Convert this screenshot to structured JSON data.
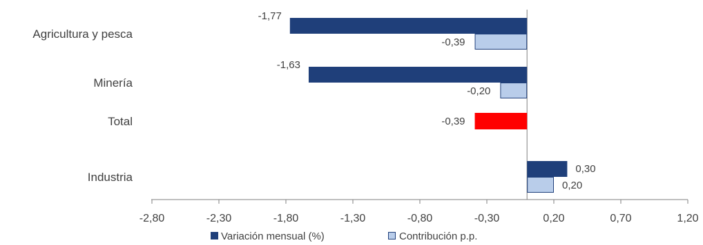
{
  "chart_data": {
    "type": "bar",
    "orientation": "horizontal",
    "categories": [
      "Agricultura y pesca",
      "Minería",
      "Total",
      "Industria"
    ],
    "series": [
      {
        "name": "Variación mensual (%)",
        "color": "#1f3f7a",
        "values": [
          -1.77,
          -1.63,
          null,
          0.3
        ],
        "labels": [
          "-1,77",
          "-1,63",
          "",
          "0,30"
        ]
      },
      {
        "name": "Contribución p.p.",
        "color": "#b9cdea",
        "border": "#1f3f7a",
        "values": [
          -0.39,
          -0.2,
          null,
          0.2
        ],
        "labels": [
          "-0,39",
          "-0,20",
          "",
          "0,20"
        ]
      }
    ],
    "total": {
      "category": "Total",
      "value": -0.39,
      "label": "-0,39",
      "color": "#ff0000"
    },
    "xlim": [
      -2.8,
      1.2
    ],
    "xticks": [
      -2.8,
      -2.3,
      -1.8,
      -1.3,
      -0.8,
      -0.3,
      0.2,
      0.7,
      1.2
    ],
    "xtick_labels": [
      "-2,80",
      "-2,30",
      "-1,80",
      "-1,30",
      "-0,80",
      "-0,30",
      "0,20",
      "0,70",
      "1,20"
    ],
    "grid": false,
    "legend_position": "bottom"
  }
}
